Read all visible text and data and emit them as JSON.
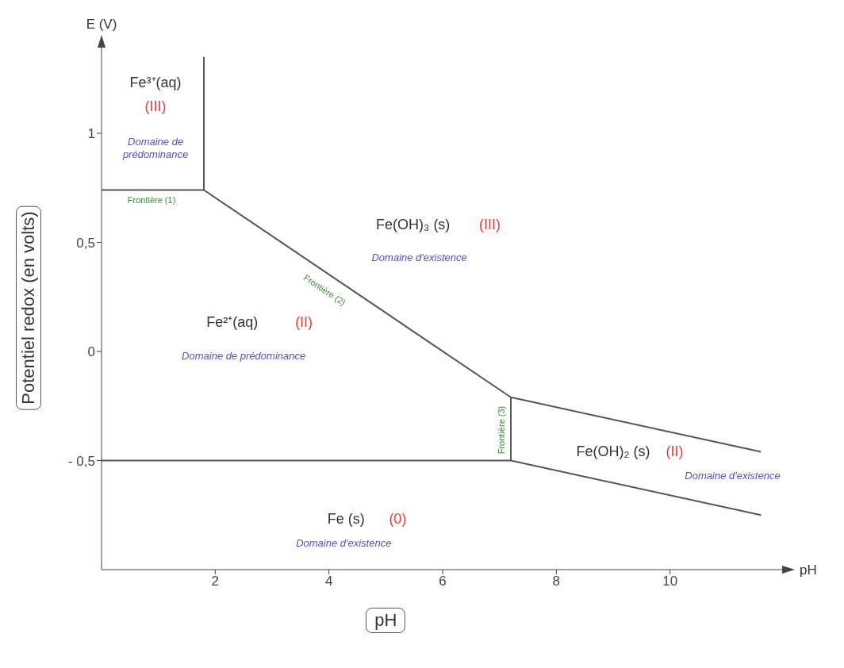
{
  "chart_data": {
    "type": "line",
    "xlabel": "pH",
    "ylabel": "Potentiel redox (en volts)",
    "xlim": [
      0,
      12
    ],
    "ylim": [
      -1,
      1.4
    ],
    "xticks": [
      2,
      4,
      6,
      8,
      10
    ],
    "yticks": [
      {
        "value": -0.5,
        "label": "- 0,5"
      },
      0,
      {
        "value": 0.5,
        "label": "0,5"
      },
      1
    ],
    "marker": "none",
    "line_style": "solid",
    "series": [
      {
        "color": "#555555",
        "x": [
          0,
          1.8,
          1.8
        ],
        "values": [
          0.74,
          0.74,
          1.35
        ]
      },
      {
        "color": "#555555",
        "x": [
          1.8,
          7.2,
          11.6
        ],
        "values": [
          0.74,
          -0.21,
          -0.46
        ]
      },
      {
        "color": "#555555",
        "x": [
          7.2,
          7.2
        ],
        "values": [
          -0.21,
          -0.5
        ]
      },
      {
        "color": "#555555",
        "x": [
          0,
          7.2,
          11.6
        ],
        "values": [
          -0.5,
          -0.5,
          -0.75
        ]
      }
    ],
    "annotations": [
      "Fe³⁺(aq)",
      "(III)",
      "Domaine de prédominance",
      "Fe²⁺(aq)",
      "(II)",
      "Domaine de prédominance",
      "Fe(OH)₃ (s)",
      "(III)",
      "Domaine d'existence",
      "Fe(OH)₂ (s)",
      "(II)",
      "Domaine d'existence",
      "Fe (s)",
      "(0)",
      "Domaine d'existence",
      "Frontière (1)",
      "Frontière (2)",
      "Frontière (3)",
      "E (V)",
      "pH"
    ]
  }
}
